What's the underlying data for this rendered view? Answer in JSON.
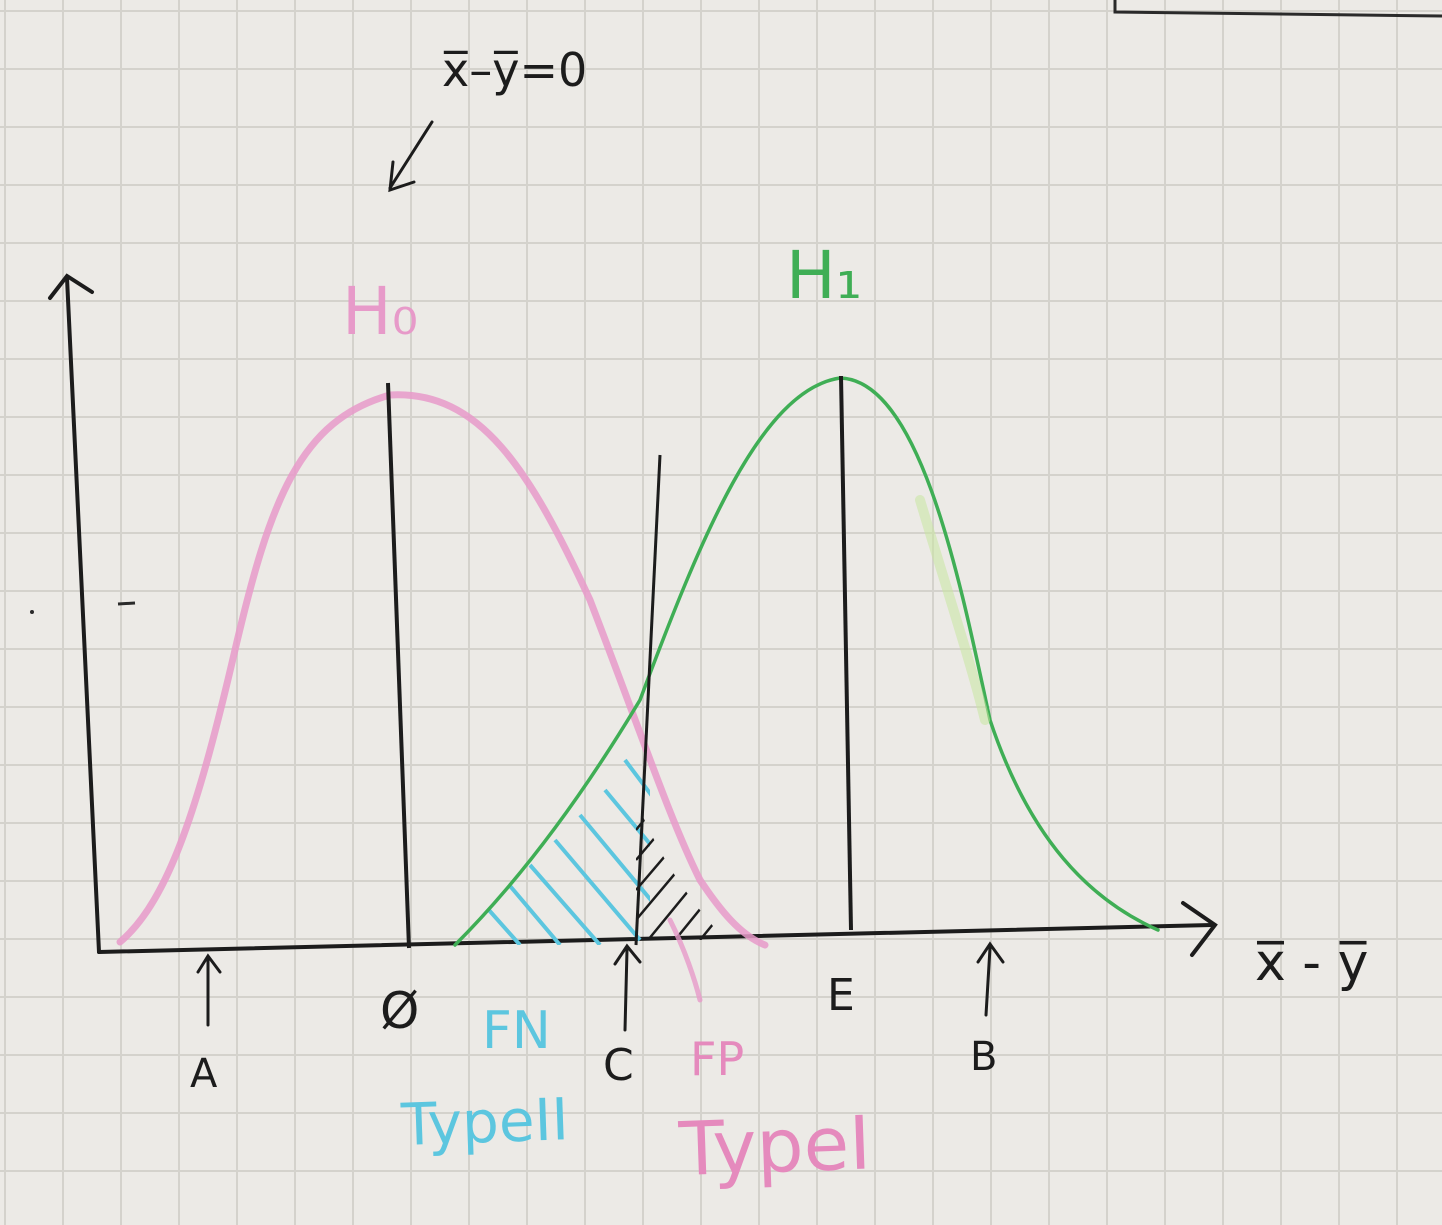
{
  "diagram": {
    "top_annotation": "x̅–y̅=0",
    "null_hypothesis": {
      "label": "H₀",
      "center_label": "Ø",
      "color": "#e79ac9"
    },
    "alt_hypothesis": {
      "label": "H₁",
      "center_label": "E",
      "color": "#3fae55"
    },
    "critical_value_label": "C",
    "x_axis_label": "x̅ - y̅",
    "marker_a": "A",
    "marker_b": "B",
    "false_negative": {
      "label": "FN",
      "type_label": "TypeII",
      "color": "#5cc6df"
    },
    "false_positive": {
      "label": "FP",
      "type_label": "TypeI",
      "color": "#e58abd"
    },
    "ink_color": "#1c1c1c"
  }
}
